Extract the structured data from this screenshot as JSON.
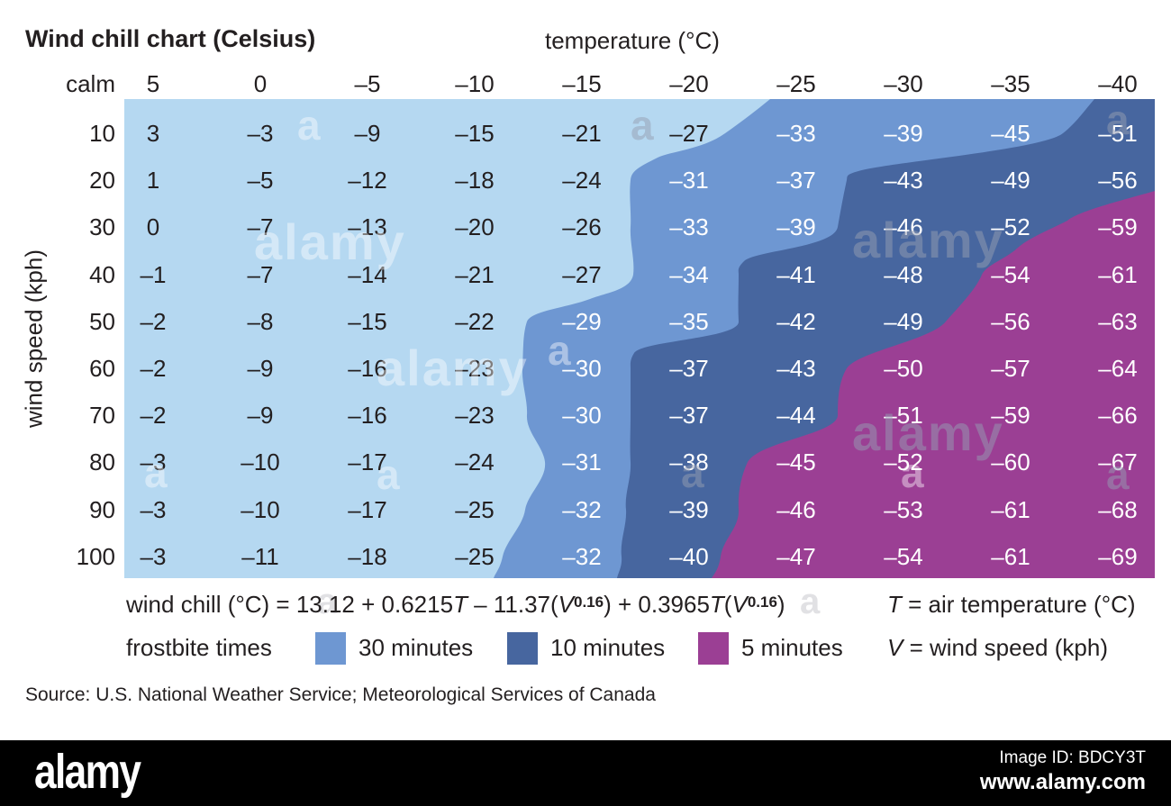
{
  "title": "Wind chill chart (Celsius)",
  "axes": {
    "top_label": "temperature (°C)",
    "left_label": "wind speed (kph)",
    "corner_label": "calm"
  },
  "chart_data": {
    "type": "heatmap",
    "xlabel": "temperature (°C)",
    "ylabel": "wind speed (kph)",
    "temperatures": [
      5,
      0,
      -5,
      -10,
      -15,
      -20,
      -25,
      -30,
      -35,
      -40
    ],
    "wind_speeds": [
      10,
      20,
      30,
      40,
      50,
      60,
      70,
      80,
      90,
      100
    ],
    "values": [
      [
        3,
        -3,
        -9,
        -15,
        -21,
        -27,
        -33,
        -39,
        -45,
        -51
      ],
      [
        1,
        -5,
        -12,
        -18,
        -24,
        -31,
        -37,
        -43,
        -49,
        -56
      ],
      [
        0,
        -7,
        -13,
        -20,
        -26,
        -33,
        -39,
        -46,
        -52,
        -59
      ],
      [
        -1,
        -7,
        -14,
        -21,
        -27,
        -34,
        -41,
        -48,
        -54,
        -61
      ],
      [
        -2,
        -8,
        -15,
        -22,
        -29,
        -35,
        -42,
        -49,
        -56,
        -63
      ],
      [
        -2,
        -9,
        -16,
        -23,
        -30,
        -37,
        -43,
        -50,
        -57,
        -64
      ],
      [
        -2,
        -9,
        -16,
        -23,
        -30,
        -37,
        -44,
        -51,
        -59,
        -66
      ],
      [
        -3,
        -10,
        -17,
        -24,
        -31,
        -38,
        -45,
        -52,
        -60,
        -67
      ],
      [
        -3,
        -10,
        -17,
        -25,
        -32,
        -39,
        -46,
        -53,
        -61,
        -68
      ],
      [
        -3,
        -11,
        -18,
        -25,
        -32,
        -40,
        -47,
        -54,
        -61,
        -69
      ]
    ],
    "white_text_from_col": [
      6,
      5,
      5,
      5,
      4,
      4,
      4,
      4,
      4,
      4
    ],
    "region_colors": {
      "base": "#b5d8f1",
      "frostbite_30min": "#6e97d2",
      "frostbite_10min": "#47669f",
      "frostbite_5min": "#9b3f94"
    }
  },
  "formula": {
    "s1": "wind chill (°C) = 13.12 + 0.6215",
    "t1": "T",
    "s2": " – 11.37(",
    "v1": "V",
    "sup1": "0.16",
    "s3": ") + 0.3965",
    "t2": "T",
    "s4": "(",
    "v2": "V",
    "sup2": "0.16",
    "s5": ")"
  },
  "definitions": [
    {
      "symbol": "T",
      "text": " = air temperature (°C)"
    },
    {
      "symbol": "V",
      "text": " = wind speed (kph)"
    }
  ],
  "legend": {
    "label": "frostbite times",
    "items": [
      {
        "label": "30 minutes",
        "color": "#6e97d2"
      },
      {
        "label": "10 minutes",
        "color": "#47669f"
      },
      {
        "label": "5 minutes",
        "color": "#9b3f94"
      }
    ]
  },
  "source": "Source: U.S. National Weather Service; Meteorological Services of Canada",
  "footer": {
    "brand": "alamy",
    "image_id": "Image ID: BDCY3T",
    "url": "www.alamy.com"
  },
  "watermark": {
    "letter": "a",
    "wordmark": "alamy"
  }
}
